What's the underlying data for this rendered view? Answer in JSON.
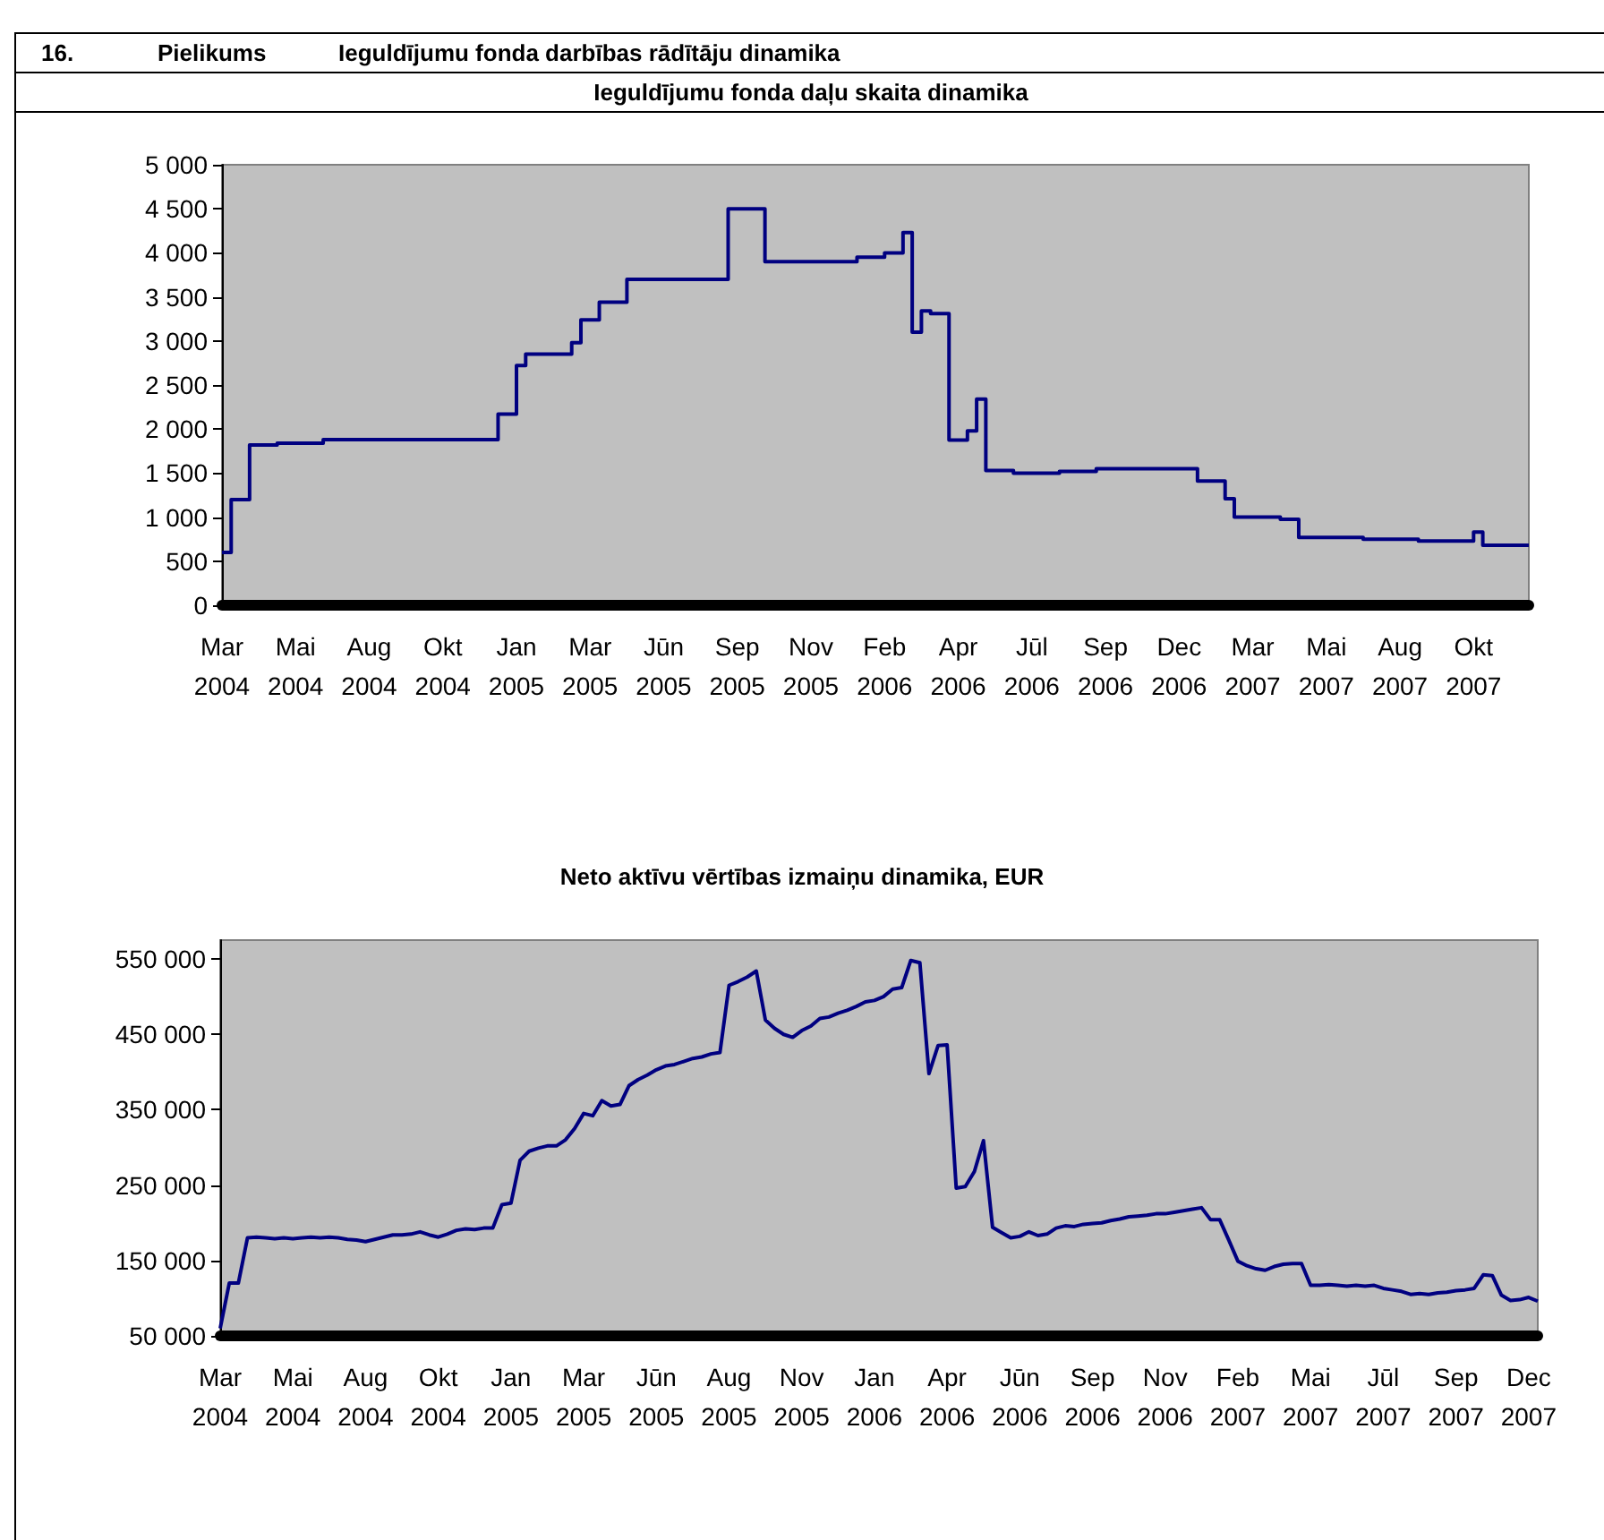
{
  "chart_data": [
    {
      "type": "step",
      "title": "Ieguldījumu fonda daļu skaita dinamika",
      "annotations": [
        "16.",
        "Pielikums",
        "Ieguldījumu fonda darbības rādītāju dinamika"
      ],
      "categories": [
        "Mar 2004",
        null,
        null,
        null,
        null,
        null,
        null,
        null,
        "Mai 2004",
        null,
        null,
        null,
        null,
        null,
        null,
        null,
        "Aug 2004",
        null,
        null,
        null,
        null,
        null,
        null,
        null,
        "Okt 2004",
        null,
        null,
        null,
        null,
        null,
        null,
        null,
        "Jan 2005",
        null,
        null,
        null,
        null,
        null,
        null,
        null,
        "Mar 2005",
        null,
        null,
        null,
        null,
        null,
        null,
        null,
        "Jūn 2005",
        null,
        null,
        null,
        null,
        null,
        null,
        null,
        "Sep 2005",
        null,
        null,
        null,
        null,
        null,
        null,
        null,
        "Nov 2005",
        null,
        null,
        null,
        null,
        null,
        null,
        null,
        "Feb 2006",
        null,
        null,
        null,
        null,
        null,
        null,
        null,
        "Apr 2006",
        null,
        null,
        null,
        null,
        null,
        null,
        null,
        "Jūl 2006",
        null,
        null,
        null,
        null,
        null,
        null,
        null,
        "Sep 2006",
        null,
        null,
        null,
        null,
        null,
        null,
        null,
        "Dec 2006",
        null,
        null,
        null,
        null,
        null,
        null,
        null,
        "Mar 2007",
        null,
        null,
        null,
        null,
        null,
        null,
        null,
        "Mai 2007",
        null,
        null,
        null,
        null,
        null,
        null,
        null,
        "Aug 2007",
        null,
        null,
        null,
        null,
        null,
        null,
        null,
        "Okt 2007",
        null,
        null,
        null,
        null,
        null,
        null
      ],
      "series": [
        {
          "color": "#000080",
          "values": [
            600,
            1200,
            1200,
            1820,
            1820,
            1820,
            1840,
            1840,
            1840,
            1840,
            1840,
            1880,
            1880,
            1880,
            1880,
            1880,
            1880,
            1880,
            1880,
            1880,
            1880,
            1880,
            1880,
            1880,
            1880,
            1880,
            1880,
            1880,
            1880,
            1880,
            2170,
            2170,
            2720,
            2850,
            2850,
            2850,
            2850,
            2850,
            2980,
            3240,
            3240,
            3440,
            3440,
            3440,
            3700,
            3700,
            3700,
            3700,
            3700,
            3700,
            3700,
            3700,
            3700,
            3700,
            3700,
            4500,
            4500,
            4500,
            4500,
            3900,
            3900,
            3900,
            3900,
            3900,
            3900,
            3900,
            3900,
            3900,
            3900,
            3950,
            3950,
            3950,
            4000,
            4000,
            4230,
            3100,
            3340,
            3310,
            3310,
            1875,
            1875,
            1980,
            2340,
            1530,
            1530,
            1530,
            1500,
            1500,
            1500,
            1500,
            1500,
            1520,
            1520,
            1520,
            1520,
            1550,
            1550,
            1550,
            1550,
            1550,
            1550,
            1550,
            1550,
            1550,
            1550,
            1550,
            1410,
            1410,
            1410,
            1210,
            1000,
            1000,
            1000,
            1000,
            1000,
            975,
            975,
            770,
            770,
            770,
            770,
            770,
            770,
            770,
            750,
            750,
            750,
            750,
            750,
            750,
            730,
            730,
            730,
            730,
            730,
            730,
            830,
            680,
            680,
            680,
            680,
            680,
            680
          ]
        }
      ],
      "ylim": [
        0,
        5000
      ],
      "yticks": [
        0,
        500,
        {
          "value": 1000,
          "label": "1 000"
        },
        {
          "value": 1500,
          "label": "1 500"
        },
        {
          "value": 2000,
          "label": "2 000"
        },
        {
          "value": 2500,
          "label": "2 500"
        },
        {
          "value": 3000,
          "label": "3 000"
        },
        {
          "value": 3500,
          "label": "3 500"
        },
        {
          "value": 4000,
          "label": "4 000"
        },
        {
          "value": 4500,
          "label": "4 500"
        },
        {
          "value": 5000,
          "label": "5 000"
        }
      ]
    },
    {
      "type": "line",
      "title": "Neto aktīvu vērtības izmaiņu dinamika, EUR",
      "categories": [
        "Mar 2004",
        null,
        null,
        null,
        null,
        null,
        null,
        null,
        "Mai 2004",
        null,
        null,
        null,
        null,
        null,
        null,
        null,
        "Aug 2004",
        null,
        null,
        null,
        null,
        null,
        null,
        null,
        "Okt 2004",
        null,
        null,
        null,
        null,
        null,
        null,
        null,
        "Jan 2005",
        null,
        null,
        null,
        null,
        null,
        null,
        null,
        "Mar 2005",
        null,
        null,
        null,
        null,
        null,
        null,
        null,
        "Jūn 2005",
        null,
        null,
        null,
        null,
        null,
        null,
        null,
        "Aug 2005",
        null,
        null,
        null,
        null,
        null,
        null,
        null,
        "Nov 2005",
        null,
        null,
        null,
        null,
        null,
        null,
        null,
        "Jan 2006",
        null,
        null,
        null,
        null,
        null,
        null,
        null,
        "Apr 2006",
        null,
        null,
        null,
        null,
        null,
        null,
        null,
        "Jūn 2006",
        null,
        null,
        null,
        null,
        null,
        null,
        null,
        "Sep 2006",
        null,
        null,
        null,
        null,
        null,
        null,
        null,
        "Nov 2006",
        null,
        null,
        null,
        null,
        null,
        null,
        null,
        "Feb 2007",
        null,
        null,
        null,
        null,
        null,
        null,
        null,
        "Mai 2007",
        null,
        null,
        null,
        null,
        null,
        null,
        null,
        "Jūl 2007",
        null,
        null,
        null,
        null,
        null,
        null,
        null,
        "Sep 2007",
        null,
        null,
        null,
        null,
        null,
        null,
        null,
        "Dec 2007",
        null
      ],
      "series": [
        {
          "color": "#000080",
          "values": [
            60000,
            120000,
            120000,
            180000,
            181000,
            180000,
            179000,
            180000,
            179000,
            180000,
            181000,
            180000,
            181000,
            180000,
            178000,
            177000,
            175000,
            178000,
            181000,
            184000,
            184000,
            185000,
            188000,
            184000,
            181000,
            185000,
            190000,
            192000,
            191000,
            193000,
            193000,
            224000,
            226000,
            283000,
            295000,
            299000,
            302000,
            302000,
            310000,
            325000,
            345000,
            342000,
            362000,
            355000,
            357000,
            382000,
            390000,
            396000,
            403000,
            408000,
            410000,
            414000,
            418000,
            420000,
            424000,
            426000,
            515000,
            520000,
            526000,
            534000,
            469000,
            458000,
            450000,
            446000,
            455000,
            461000,
            471000,
            473000,
            478000,
            482000,
            487000,
            493000,
            495000,
            500000,
            510000,
            512000,
            548000,
            545000,
            398000,
            435000,
            436000,
            246000,
            248000,
            268000,
            309000,
            194000,
            187000,
            180000,
            182000,
            188000,
            183000,
            185000,
            193000,
            196000,
            195000,
            198000,
            199000,
            200000,
            203000,
            205000,
            208000,
            209000,
            210000,
            212000,
            212000,
            214000,
            216000,
            218000,
            220000,
            204000,
            204000,
            177000,
            149000,
            143000,
            139000,
            137000,
            142000,
            145000,
            146000,
            146000,
            117000,
            117000,
            118000,
            117000,
            116000,
            117000,
            116000,
            117000,
            113000,
            111000,
            109000,
            105000,
            106000,
            105000,
            107000,
            108000,
            110000,
            111000,
            113000,
            131000,
            130000,
            104000,
            97000,
            98000,
            101000,
            96000
          ]
        }
      ],
      "ylim": [
        50000,
        575000
      ],
      "yticks": [
        {
          "value": 50000,
          "label": "50 000"
        },
        {
          "value": 150000,
          "label": "150 000"
        },
        {
          "value": 250000,
          "label": "250 000"
        },
        {
          "value": 350000,
          "label": "350 000"
        },
        {
          "value": 450000,
          "label": "450 000"
        },
        {
          "value": 550000,
          "label": "550 000"
        }
      ]
    }
  ]
}
